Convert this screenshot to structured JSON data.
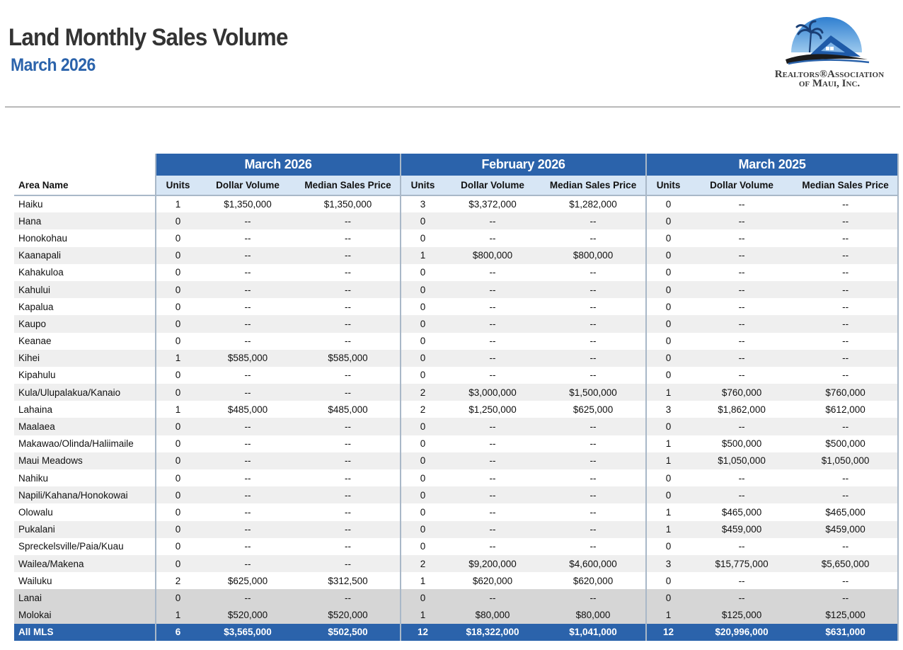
{
  "header": {
    "title": "Land Monthly Sales Volume",
    "subtitle": "March 2026"
  },
  "logo": {
    "line1": "Realtors®Association",
    "line2": "of Maui, Inc."
  },
  "colors": {
    "accent": "#2b63ab",
    "header_band": "#d7e6f5"
  },
  "table": {
    "groups": [
      "March 2026",
      "February 2026",
      "March 2025"
    ],
    "area_header": "Area Name",
    "columns": [
      "Units",
      "Dollar Volume",
      "Median Sales Price"
    ],
    "rows": [
      {
        "area": "Haiku",
        "c": [
          "1",
          "$1,350,000",
          "$1,350,000",
          "3",
          "$3,372,000",
          "$1,282,000",
          "0",
          "--",
          "--"
        ]
      },
      {
        "area": "Hana",
        "c": [
          "0",
          "--",
          "--",
          "0",
          "--",
          "--",
          "0",
          "--",
          "--"
        ]
      },
      {
        "area": "Honokohau",
        "c": [
          "0",
          "--",
          "--",
          "0",
          "--",
          "--",
          "0",
          "--",
          "--"
        ]
      },
      {
        "area": "Kaanapali",
        "c": [
          "0",
          "--",
          "--",
          "1",
          "$800,000",
          "$800,000",
          "0",
          "--",
          "--"
        ]
      },
      {
        "area": "Kahakuloa",
        "c": [
          "0",
          "--",
          "--",
          "0",
          "--",
          "--",
          "0",
          "--",
          "--"
        ]
      },
      {
        "area": "Kahului",
        "c": [
          "0",
          "--",
          "--",
          "0",
          "--",
          "--",
          "0",
          "--",
          "--"
        ]
      },
      {
        "area": "Kapalua",
        "c": [
          "0",
          "--",
          "--",
          "0",
          "--",
          "--",
          "0",
          "--",
          "--"
        ]
      },
      {
        "area": "Kaupo",
        "c": [
          "0",
          "--",
          "--",
          "0",
          "--",
          "--",
          "0",
          "--",
          "--"
        ]
      },
      {
        "area": "Keanae",
        "c": [
          "0",
          "--",
          "--",
          "0",
          "--",
          "--",
          "0",
          "--",
          "--"
        ]
      },
      {
        "area": "Kihei",
        "c": [
          "1",
          "$585,000",
          "$585,000",
          "0",
          "--",
          "--",
          "0",
          "--",
          "--"
        ]
      },
      {
        "area": "Kipahulu",
        "c": [
          "0",
          "--",
          "--",
          "0",
          "--",
          "--",
          "0",
          "--",
          "--"
        ]
      },
      {
        "area": "Kula/Ulupalakua/Kanaio",
        "c": [
          "0",
          "--",
          "--",
          "2",
          "$3,000,000",
          "$1,500,000",
          "1",
          "$760,000",
          "$760,000"
        ]
      },
      {
        "area": "Lahaina",
        "c": [
          "1",
          "$485,000",
          "$485,000",
          "2",
          "$1,250,000",
          "$625,000",
          "3",
          "$1,862,000",
          "$612,000"
        ]
      },
      {
        "area": "Maalaea",
        "c": [
          "0",
          "--",
          "--",
          "0",
          "--",
          "--",
          "0",
          "--",
          "--"
        ]
      },
      {
        "area": "Makawao/Olinda/Haliimaile",
        "c": [
          "0",
          "--",
          "--",
          "0",
          "--",
          "--",
          "1",
          "$500,000",
          "$500,000"
        ]
      },
      {
        "area": "Maui Meadows",
        "c": [
          "0",
          "--",
          "--",
          "0",
          "--",
          "--",
          "1",
          "$1,050,000",
          "$1,050,000"
        ]
      },
      {
        "area": "Nahiku",
        "c": [
          "0",
          "--",
          "--",
          "0",
          "--",
          "--",
          "0",
          "--",
          "--"
        ]
      },
      {
        "area": "Napili/Kahana/Honokowai",
        "c": [
          "0",
          "--",
          "--",
          "0",
          "--",
          "--",
          "0",
          "--",
          "--"
        ]
      },
      {
        "area": "Olowalu",
        "c": [
          "0",
          "--",
          "--",
          "0",
          "--",
          "--",
          "1",
          "$465,000",
          "$465,000"
        ]
      },
      {
        "area": "Pukalani",
        "c": [
          "0",
          "--",
          "--",
          "0",
          "--",
          "--",
          "1",
          "$459,000",
          "$459,000"
        ]
      },
      {
        "area": "Spreckelsville/Paia/Kuau",
        "c": [
          "0",
          "--",
          "--",
          "0",
          "--",
          "--",
          "0",
          "--",
          "--"
        ]
      },
      {
        "area": "Wailea/Makena",
        "c": [
          "0",
          "--",
          "--",
          "2",
          "$9,200,000",
          "$4,600,000",
          "3",
          "$15,775,000",
          "$5,650,000"
        ]
      },
      {
        "area": "Wailuku",
        "c": [
          "2",
          "$625,000",
          "$312,500",
          "1",
          "$620,000",
          "$620,000",
          "0",
          "--",
          "--"
        ]
      },
      {
        "area": "Lanai",
        "extra": true,
        "c": [
          "0",
          "--",
          "--",
          "0",
          "--",
          "--",
          "0",
          "--",
          "--"
        ]
      },
      {
        "area": "Molokai",
        "extra": true,
        "c": [
          "1",
          "$520,000",
          "$520,000",
          "1",
          "$80,000",
          "$80,000",
          "1",
          "$125,000",
          "$125,000"
        ]
      }
    ],
    "total": {
      "area": "All MLS",
      "c": [
        "6",
        "$3,565,000",
        "$502,500",
        "12",
        "$18,322,000",
        "$1,041,000",
        "12",
        "$20,996,000",
        "$631,000"
      ]
    }
  }
}
